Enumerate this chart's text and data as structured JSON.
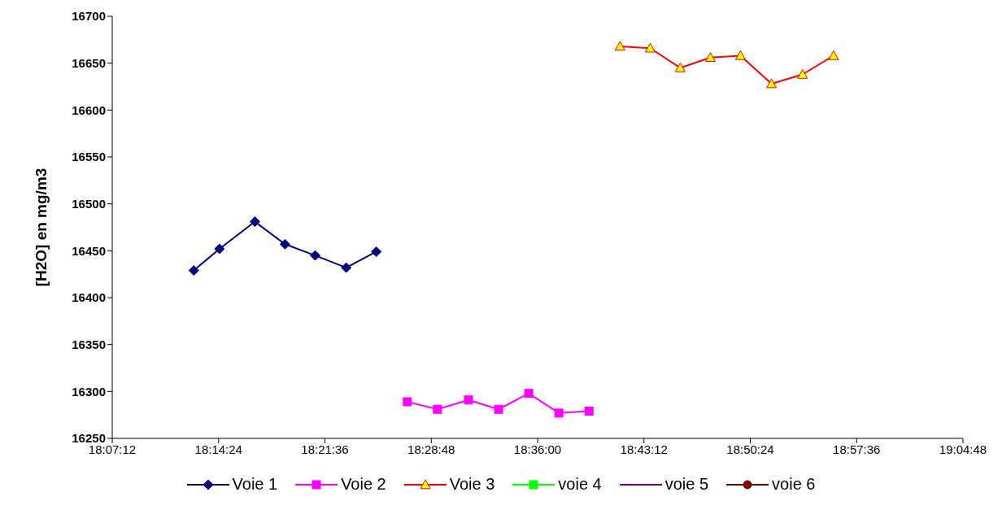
{
  "chart_data": {
    "type": "line",
    "ylabel": "[H2O] en mg/m3",
    "xlim": [
      18.12,
      19.08
    ],
    "xticks": [
      {
        "value": 18.12,
        "label": "18:07:12"
      },
      {
        "value": 18.24,
        "label": "18:14:24"
      },
      {
        "value": 18.36,
        "label": "18:21:36"
      },
      {
        "value": 18.48,
        "label": "18:28:48"
      },
      {
        "value": 18.6,
        "label": "18:36:00"
      },
      {
        "value": 18.72,
        "label": "18:43:12"
      },
      {
        "value": 18.84,
        "label": "18:50:24"
      },
      {
        "value": 18.96,
        "label": "18:57:36"
      },
      {
        "value": 19.08,
        "label": "19:04:48"
      }
    ],
    "ylim": [
      16250,
      16700
    ],
    "yticks": [
      16250,
      16300,
      16350,
      16400,
      16450,
      16500,
      16550,
      16600,
      16650,
      16700
    ],
    "grid": false,
    "legend": "bottom",
    "line_style": "solid",
    "series": [
      {
        "name": "Voie 1",
        "color": "#000080",
        "marker": "diamond",
        "x": [
          18.212,
          18.241,
          18.281,
          18.315,
          18.349,
          18.384,
          18.418
        ],
        "values": [
          16429,
          16452,
          16481,
          16457,
          16445,
          16432,
          16449
        ]
      },
      {
        "name": "Voie 2",
        "color": "#ff00ff",
        "marker": "square",
        "x": [
          18.453,
          18.487,
          18.522,
          18.556,
          18.59,
          18.624,
          18.658
        ],
        "values": [
          16289,
          16281,
          16291,
          16281,
          16298,
          16277,
          16279
        ]
      },
      {
        "name": "Voie 3",
        "color": "#ff0000",
        "marker": "triangle",
        "x": [
          18.693,
          18.727,
          18.761,
          18.795,
          18.829,
          18.864,
          18.899,
          18.934
        ],
        "values": [
          16668,
          16666,
          16645,
          16656,
          16658,
          16628,
          16638,
          16658
        ]
      },
      {
        "name": "voie 4",
        "color": "#00ff00",
        "marker": "square"
      },
      {
        "name": "voie 5",
        "color": "#800080",
        "marker": "none"
      },
      {
        "name": "voie 6",
        "color": "#800000",
        "marker": "circle"
      }
    ]
  }
}
